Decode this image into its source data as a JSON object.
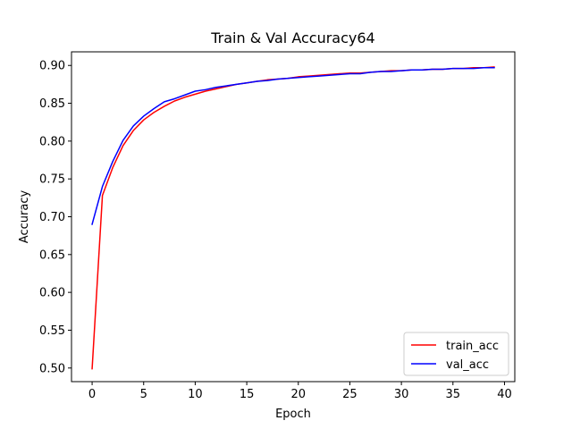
{
  "chart_data": {
    "type": "line",
    "title": "Train & Val Accuracy64",
    "xlabel": "Epoch",
    "ylabel": "Accuracy",
    "xlim": [
      -2,
      41
    ],
    "ylim": [
      0.482,
      0.918
    ],
    "xticks": [
      0,
      5,
      10,
      15,
      20,
      25,
      30,
      35,
      40
    ],
    "yticks": [
      0.5,
      0.55,
      0.6,
      0.65,
      0.7,
      0.75,
      0.8,
      0.85,
      0.9
    ],
    "ytick_decimals": 2,
    "grid": false,
    "legend_position": "lower-right",
    "x": [
      0,
      1,
      2,
      3,
      4,
      5,
      6,
      7,
      8,
      9,
      10,
      11,
      12,
      13,
      14,
      15,
      16,
      17,
      18,
      19,
      20,
      21,
      22,
      23,
      24,
      25,
      26,
      27,
      28,
      29,
      30,
      31,
      32,
      33,
      34,
      35,
      36,
      37,
      38,
      39
    ],
    "series": [
      {
        "name": "train_acc",
        "color": "#ff0000",
        "values": [
          0.499,
          0.728,
          0.765,
          0.794,
          0.814,
          0.828,
          0.838,
          0.846,
          0.853,
          0.858,
          0.862,
          0.866,
          0.869,
          0.872,
          0.875,
          0.877,
          0.879,
          0.881,
          0.882,
          0.883,
          0.885,
          0.886,
          0.887,
          0.888,
          0.889,
          0.89,
          0.89,
          0.891,
          0.892,
          0.893,
          0.893,
          0.894,
          0.894,
          0.895,
          0.895,
          0.896,
          0.896,
          0.897,
          0.897,
          0.898
        ]
      },
      {
        "name": "val_acc",
        "color": "#0000ff",
        "values": [
          0.69,
          0.74,
          0.773,
          0.801,
          0.82,
          0.833,
          0.843,
          0.852,
          0.856,
          0.861,
          0.866,
          0.868,
          0.871,
          0.873,
          0.875,
          0.877,
          0.879,
          0.88,
          0.882,
          0.883,
          0.884,
          0.885,
          0.886,
          0.887,
          0.888,
          0.889,
          0.889,
          0.891,
          0.892,
          0.892,
          0.893,
          0.894,
          0.894,
          0.895,
          0.895,
          0.896,
          0.896,
          0.896,
          0.897,
          0.897
        ]
      }
    ]
  }
}
